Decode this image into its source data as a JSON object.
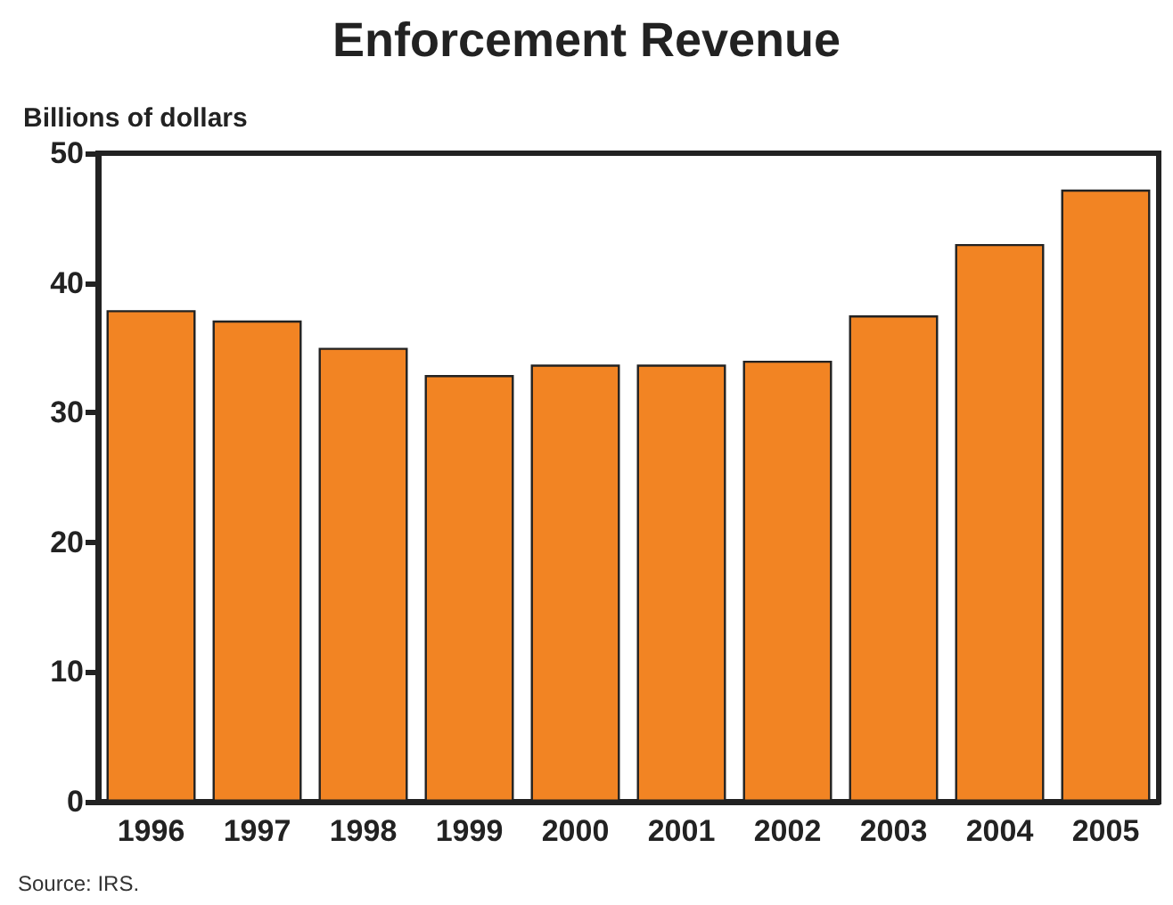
{
  "chart_data": {
    "type": "bar",
    "title": "Enforcement Revenue",
    "ylabel": "Billions of dollars",
    "categories": [
      "1996",
      "1997",
      "1998",
      "1999",
      "2000",
      "2001",
      "2002",
      "2003",
      "2004",
      "2005"
    ],
    "values": [
      37.9,
      37.1,
      35.0,
      32.9,
      33.7,
      33.7,
      34.0,
      37.5,
      43.0,
      47.2
    ],
    "color": "#f28423",
    "ylim": [
      0,
      50
    ],
    "yticks": [
      0,
      10,
      20,
      30,
      40,
      50
    ],
    "grid": false,
    "annotations": [
      "Source: IRS."
    ]
  }
}
